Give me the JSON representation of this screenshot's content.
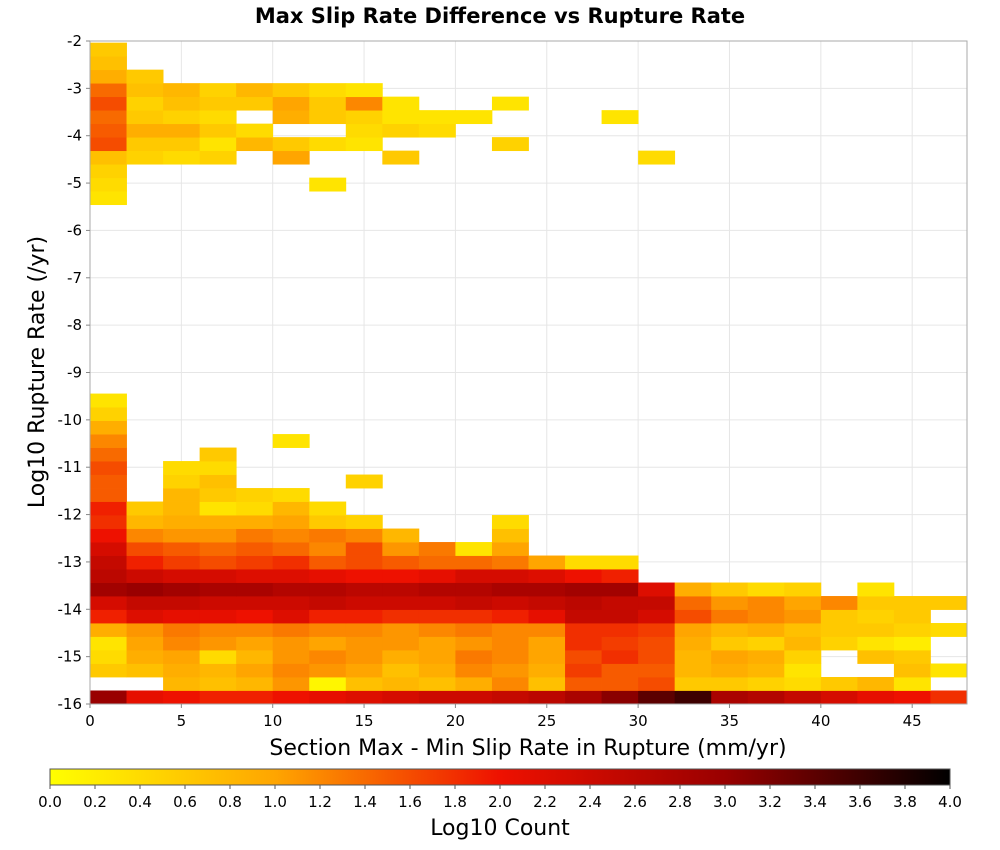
{
  "chart_data": {
    "type": "heatmap",
    "title": "Max Slip Rate Difference vs Rupture Rate",
    "xlabel": "Section Max - Min Slip Rate in Rupture (mm/yr)",
    "ylabel": "Log10 Rupture Rate (/yr)",
    "xlim": [
      0,
      48
    ],
    "ylim": [
      -16,
      -2
    ],
    "x_ticks": [
      "0",
      "5",
      "10",
      "15",
      "20",
      "25",
      "30",
      "35",
      "40",
      "45"
    ],
    "x_tick_values": [
      0,
      5,
      10,
      15,
      20,
      25,
      30,
      35,
      40,
      45
    ],
    "y_ticks": [
      "-2",
      "-3",
      "-4",
      "-5",
      "-6",
      "-7",
      "-8",
      "-9",
      "-10",
      "-11",
      "-12",
      "-13",
      "-14",
      "-15",
      "-16"
    ],
    "y_tick_values": [
      -2,
      -3,
      -4,
      -5,
      -6,
      -7,
      -8,
      -9,
      -10,
      -11,
      -12,
      -13,
      -14,
      -15,
      -16
    ],
    "grid": true,
    "x_bin_width": 2,
    "y_bin_height": 0.285,
    "x_bin_starts": [
      0,
      2,
      4,
      6,
      8,
      10,
      12,
      14,
      16,
      18,
      20,
      22,
      24,
      26,
      28,
      30,
      32,
      34,
      36,
      38,
      40,
      42,
      44,
      46
    ],
    "row_bottoms": [
      -16.0,
      -15.715,
      -15.43,
      -15.145,
      -14.86,
      -14.575,
      -14.29,
      -14.005,
      -13.72,
      -13.435,
      -13.15,
      -12.865,
      -12.58,
      -12.295,
      -12.01,
      -11.725,
      -11.44,
      -11.155,
      -10.87,
      -10.585,
      -10.3,
      -10.015,
      -9.73,
      -5.455,
      -5.17,
      -4.885,
      -4.6,
      -4.315,
      -4.03,
      -3.745,
      -3.46,
      -3.175,
      -2.89,
      -2.605,
      -2.32
    ],
    "rows": [
      [
        3.0,
        2.1,
        2.0,
        1.9,
        1.9,
        2.0,
        2.1,
        2.2,
        2.3,
        2.4,
        2.4,
        2.5,
        2.6,
        2.8,
        3.1,
        3.4,
        3.6,
        2.8,
        2.7,
        2.5,
        2.3,
        2.1,
        2.0,
        1.8
      ],
      [
        null,
        null,
        0.8,
        0.7,
        0.8,
        1.1,
        0.1,
        0.7,
        0.8,
        0.7,
        0.9,
        1.2,
        0.7,
        1.5,
        1.5,
        1.6,
        0.6,
        0.6,
        0.5,
        0.4,
        0.6,
        0.8,
        0.3,
        null
      ],
      [
        0.6,
        0.7,
        0.9,
        0.8,
        1.0,
        1.2,
        1.1,
        1.0,
        0.7,
        0.9,
        1.2,
        1.1,
        0.9,
        1.7,
        1.5,
        1.5,
        0.8,
        0.9,
        0.8,
        0.3,
        null,
        null,
        0.7,
        0.3
      ],
      [
        0.4,
        0.9,
        1.0,
        0.4,
        0.8,
        1.1,
        1.2,
        1.1,
        0.9,
        1.0,
        1.3,
        1.2,
        1.0,
        1.6,
        1.8,
        1.6,
        0.8,
        1.0,
        0.9,
        0.5,
        null,
        0.7,
        0.6,
        null
      ],
      [
        0.3,
        1.0,
        1.2,
        1.1,
        1.0,
        1.1,
        1.0,
        1.1,
        1.1,
        1.0,
        1.1,
        1.2,
        1.0,
        1.8,
        1.7,
        1.6,
        0.9,
        0.6,
        0.5,
        0.8,
        0.5,
        0.3,
        0.2,
        null
      ],
      [
        0.9,
        1.1,
        1.3,
        1.2,
        1.2,
        1.3,
        1.2,
        1.2,
        1.1,
        1.2,
        1.3,
        1.2,
        1.2,
        1.8,
        1.8,
        1.7,
        1.0,
        0.8,
        0.9,
        0.7,
        0.6,
        0.6,
        0.5,
        0.4
      ],
      [
        1.9,
        2.2,
        2.1,
        2.1,
        2.0,
        2.2,
        1.9,
        1.9,
        1.8,
        1.8,
        1.8,
        1.9,
        2.1,
        2.5,
        2.5,
        2.3,
        1.6,
        1.3,
        1.2,
        1.1,
        0.6,
        0.5,
        0.6,
        null
      ],
      [
        2.3,
        2.5,
        2.5,
        2.4,
        2.4,
        2.4,
        2.5,
        2.4,
        2.4,
        2.4,
        2.5,
        2.4,
        2.5,
        2.6,
        2.5,
        2.5,
        1.4,
        1.1,
        1.2,
        1.0,
        1.2,
        0.6,
        0.6,
        0.6
      ],
      [
        2.9,
        3.0,
        2.9,
        2.8,
        2.8,
        2.7,
        2.7,
        2.6,
        2.6,
        2.7,
        2.7,
        2.8,
        2.8,
        2.9,
        2.9,
        2.2,
        0.9,
        0.6,
        0.4,
        0.5,
        null,
        0.3,
        null,
        null
      ],
      [
        2.6,
        2.4,
        2.3,
        2.3,
        2.2,
        2.2,
        2.1,
        2.0,
        2.0,
        2.1,
        2.3,
        2.3,
        2.2,
        2.0,
        1.9,
        null,
        null,
        null,
        null,
        null,
        null,
        null,
        null,
        null
      ],
      [
        2.5,
        1.9,
        1.7,
        1.6,
        1.7,
        1.8,
        1.5,
        1.6,
        1.5,
        1.4,
        1.4,
        1.3,
        1.0,
        0.4,
        0.4,
        null,
        null,
        null,
        null,
        null,
        null,
        null,
        null,
        null
      ],
      [
        2.3,
        1.6,
        1.5,
        1.4,
        1.5,
        1.4,
        1.2,
        1.6,
        1.1,
        1.3,
        0.3,
        1.0,
        null,
        null,
        null,
        null,
        null,
        null,
        null,
        null,
        null,
        null,
        null,
        null
      ],
      [
        2.0,
        1.2,
        1.1,
        1.1,
        1.3,
        1.2,
        1.3,
        1.2,
        0.8,
        null,
        null,
        0.7,
        null,
        null,
        null,
        null,
        null,
        null,
        null,
        null,
        null,
        null,
        null,
        null
      ],
      [
        1.8,
        0.8,
        0.9,
        0.9,
        0.9,
        1.0,
        0.6,
        0.5,
        null,
        null,
        null,
        0.4,
        null,
        null,
        null,
        null,
        null,
        null,
        null,
        null,
        null,
        null,
        null,
        null
      ],
      [
        1.9,
        0.6,
        0.8,
        0.3,
        0.4,
        0.8,
        0.4,
        null,
        null,
        null,
        null,
        null,
        null,
        null,
        null,
        null,
        null,
        null,
        null,
        null,
        null,
        null,
        null,
        null
      ],
      [
        1.5,
        null,
        0.8,
        0.6,
        0.5,
        0.4,
        null,
        null,
        null,
        null,
        null,
        null,
        null,
        null,
        null,
        null,
        null,
        null,
        null,
        null,
        null,
        null,
        null,
        null
      ],
      [
        1.5,
        null,
        0.5,
        0.7,
        null,
        null,
        null,
        0.5,
        null,
        null,
        null,
        null,
        null,
        null,
        null,
        null,
        null,
        null,
        null,
        null,
        null,
        null,
        null,
        null
      ],
      [
        1.6,
        null,
        0.4,
        0.4,
        null,
        null,
        null,
        null,
        null,
        null,
        null,
        null,
        null,
        null,
        null,
        null,
        null,
        null,
        null,
        null,
        null,
        null,
        null,
        null
      ],
      [
        1.4,
        null,
        null,
        0.6,
        null,
        null,
        null,
        null,
        null,
        null,
        null,
        null,
        null,
        null,
        null,
        null,
        null,
        null,
        null,
        null,
        null,
        null,
        null,
        null
      ],
      [
        1.2,
        null,
        null,
        null,
        null,
        0.3,
        null,
        null,
        null,
        null,
        null,
        null,
        null,
        null,
        null,
        null,
        null,
        null,
        null,
        null,
        null,
        null,
        null,
        null
      ],
      [
        0.9,
        null,
        null,
        null,
        null,
        null,
        null,
        null,
        null,
        null,
        null,
        null,
        null,
        null,
        null,
        null,
        null,
        null,
        null,
        null,
        null,
        null,
        null,
        null
      ],
      [
        0.5,
        null,
        null,
        null,
        null,
        null,
        null,
        null,
        null,
        null,
        null,
        null,
        null,
        null,
        null,
        null,
        null,
        null,
        null,
        null,
        null,
        null,
        null,
        null
      ],
      [
        0.3,
        null,
        null,
        null,
        null,
        null,
        null,
        null,
        null,
        null,
        null,
        null,
        null,
        null,
        null,
        null,
        null,
        null,
        null,
        null,
        null,
        null,
        null,
        null
      ],
      [
        0.3,
        null,
        null,
        null,
        null,
        null,
        null,
        null,
        null,
        null,
        null,
        null,
        null,
        null,
        null,
        null,
        null,
        null,
        null,
        null,
        null,
        null,
        null,
        null
      ],
      [
        0.4,
        null,
        null,
        null,
        null,
        null,
        0.3,
        null,
        null,
        null,
        null,
        null,
        null,
        null,
        null,
        null,
        null,
        null,
        null,
        null,
        null,
        null,
        null,
        null
      ],
      [
        0.5,
        null,
        null,
        null,
        null,
        null,
        null,
        null,
        null,
        null,
        null,
        null,
        null,
        null,
        null,
        null,
        null,
        null,
        null,
        null,
        null,
        null,
        null,
        null
      ],
      [
        0.7,
        0.5,
        0.4,
        0.5,
        null,
        1.0,
        null,
        null,
        0.6,
        null,
        null,
        null,
        null,
        null,
        null,
        0.4,
        null,
        null,
        null,
        null,
        null,
        null,
        null,
        null
      ],
      [
        1.6,
        0.6,
        0.6,
        0.3,
        0.8,
        0.6,
        0.4,
        0.3,
        null,
        null,
        null,
        0.5,
        null,
        null,
        null,
        null,
        null,
        null,
        null,
        null,
        null,
        null,
        null,
        null
      ],
      [
        1.5,
        0.9,
        0.9,
        0.6,
        0.4,
        null,
        null,
        0.4,
        0.5,
        0.4,
        null,
        null,
        null,
        null,
        null,
        null,
        null,
        null,
        null,
        null,
        null,
        null,
        null,
        null
      ],
      [
        1.4,
        0.6,
        0.5,
        0.4,
        null,
        0.9,
        0.6,
        0.5,
        0.3,
        0.3,
        0.3,
        null,
        null,
        null,
        0.3,
        null,
        null,
        null,
        null,
        null,
        null,
        null,
        null,
        null
      ],
      [
        1.6,
        0.5,
        0.7,
        0.6,
        0.6,
        1.0,
        0.6,
        1.2,
        0.3,
        null,
        null,
        0.3,
        null,
        null,
        null,
        null,
        null,
        null,
        null,
        null,
        null,
        null,
        null,
        null
      ],
      [
        1.4,
        0.7,
        0.8,
        0.5,
        0.8,
        0.6,
        0.4,
        0.3,
        null,
        null,
        null,
        null,
        null,
        null,
        null,
        null,
        null,
        null,
        null,
        null,
        null,
        null,
        null,
        null
      ],
      [
        0.9,
        0.6,
        null,
        null,
        null,
        null,
        null,
        null,
        null,
        null,
        null,
        null,
        null,
        null,
        null,
        null,
        null,
        null,
        null,
        null,
        null,
        null,
        null,
        null
      ],
      [
        0.7,
        null,
        null,
        null,
        null,
        null,
        null,
        null,
        null,
        null,
        null,
        null,
        null,
        null,
        null,
        null,
        null,
        null,
        null,
        null,
        null,
        null,
        null,
        null
      ],
      [
        0.6,
        null,
        null,
        null,
        null,
        null,
        null,
        null,
        null,
        null,
        null,
        null,
        null,
        null,
        null,
        null,
        null,
        null,
        null,
        null,
        null,
        null,
        null,
        null
      ]
    ],
    "colorbar": {
      "label": "Log10 Count",
      "min": 0.0,
      "max": 4.0,
      "ticks": [
        "0.0",
        "0.2",
        "0.4",
        "0.6",
        "0.8",
        "1.0",
        "1.2",
        "1.4",
        "1.6",
        "1.8",
        "2.0",
        "2.2",
        "2.4",
        "2.6",
        "2.8",
        "3.0",
        "3.2",
        "3.4",
        "3.6",
        "3.8",
        "4.0"
      ],
      "colors": [
        "#ffff00",
        "#ffa500",
        "#ee1100",
        "#990000",
        "#000000"
      ]
    }
  }
}
